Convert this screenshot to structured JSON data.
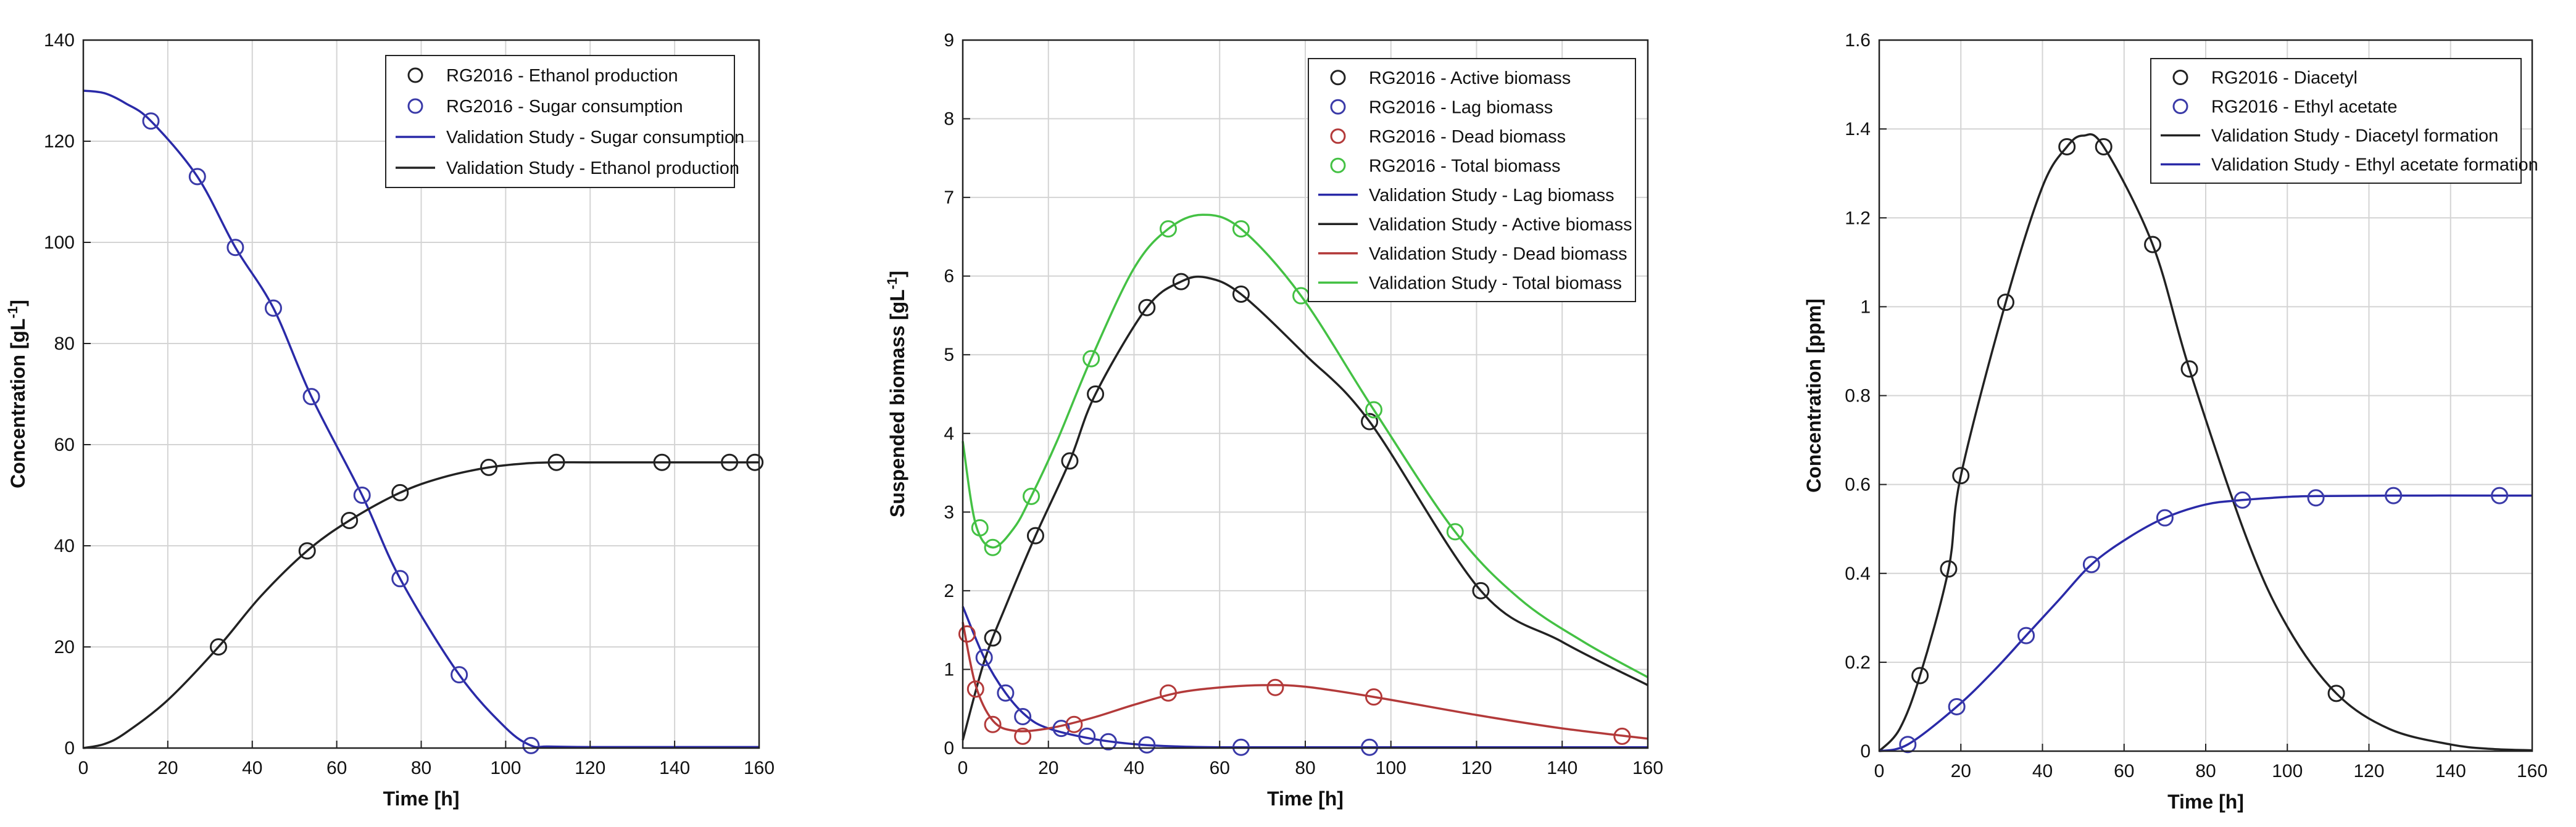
{
  "chart_data": [
    {
      "type": "line",
      "title": "",
      "xlabel": "Time [h]",
      "ylabel": "Concentration [gL",
      "ylabel_sup": "-1",
      "ylabel_close": "]",
      "xlim": [
        0,
        160
      ],
      "ylim": [
        0,
        140
      ],
      "xticks": [
        0,
        20,
        40,
        60,
        80,
        100,
        120,
        140,
        160
      ],
      "yticks": [
        0,
        20,
        40,
        60,
        80,
        100,
        120,
        140
      ],
      "grid": true,
      "legend_position": "top-right",
      "series": [
        {
          "name": "RG2016 - Ethanol production",
          "kind": "markers",
          "color": "#222222",
          "x": [
            32,
            53,
            63,
            75,
            96,
            112,
            137,
            153,
            159
          ],
          "y": [
            20,
            39,
            45,
            50.5,
            55.5,
            56.5,
            56.5,
            56.5,
            56.5
          ]
        },
        {
          "name": "RG2016 - Sugar consumption",
          "kind": "markers",
          "color": "#3a3aa8",
          "x": [
            16,
            27,
            36,
            45,
            54,
            66,
            75,
            89,
            106
          ],
          "y": [
            124,
            113,
            99,
            87,
            69.5,
            50,
            33.5,
            14.5,
            0.5
          ]
        },
        {
          "name": "Validation Study - Sugar consumption",
          "kind": "line",
          "color": "#2a2aa8",
          "x": [
            0,
            5,
            10,
            16,
            27,
            36,
            45,
            54,
            66,
            75,
            89,
            100,
            106,
            110,
            120,
            140,
            160
          ],
          "y": [
            130,
            129.5,
            127.5,
            124,
            113,
            99,
            87,
            69.5,
            50,
            33.5,
            14.5,
            4,
            0.5,
            0.3,
            0.2,
            0.2,
            0.2
          ]
        },
        {
          "name": "Validation Study - Ethanol production",
          "kind": "line",
          "color": "#222222",
          "x": [
            0,
            5,
            10,
            20,
            32,
            42,
            53,
            63,
            75,
            85,
            96,
            105,
            112,
            120,
            137,
            160
          ],
          "y": [
            0,
            0.8,
            3,
            9.5,
            20,
            30,
            39,
            45,
            50.5,
            53.5,
            55.5,
            56.3,
            56.5,
            56.5,
            56.5,
            56.5
          ]
        }
      ]
    },
    {
      "type": "line",
      "title": "",
      "xlabel": "Time [h]",
      "ylabel": "Suspended biomass [gL",
      "ylabel_sup": "-1",
      "ylabel_close": "]",
      "xlim": [
        0,
        160
      ],
      "ylim": [
        0,
        9
      ],
      "xticks": [
        0,
        20,
        40,
        60,
        80,
        100,
        120,
        140,
        160
      ],
      "yticks": [
        0,
        1,
        2,
        3,
        4,
        5,
        6,
        7,
        8,
        9
      ],
      "grid": true,
      "legend_position": "top-right",
      "series": [
        {
          "name": "RG2016 - Active biomass",
          "kind": "markers",
          "color": "#222222",
          "x": [
            7,
            17,
            25,
            31,
            43,
            51,
            65,
            95,
            121
          ],
          "y": [
            1.4,
            2.7,
            3.65,
            4.5,
            5.6,
            5.93,
            5.77,
            4.15,
            2.0
          ]
        },
        {
          "name": "RG2016 - Lag biomass",
          "kind": "markers",
          "color": "#3a3aa8",
          "x": [
            5,
            10,
            14,
            23,
            29,
            34,
            43,
            65,
            95
          ],
          "y": [
            1.15,
            0.7,
            0.4,
            0.25,
            0.15,
            0.08,
            0.04,
            0.01,
            0.01
          ]
        },
        {
          "name": "RG2016 - Dead biomass",
          "kind": "markers",
          "color": "#b33a3a",
          "x": [
            1,
            3,
            7,
            14,
            26,
            48,
            73,
            96,
            154
          ],
          "y": [
            1.45,
            0.75,
            0.3,
            0.15,
            0.3,
            0.7,
            0.77,
            0.65,
            0.15
          ]
        },
        {
          "name": "RG2016 - Total biomass",
          "kind": "markers",
          "color": "#44c144",
          "x": [
            4,
            7,
            16,
            30,
            48,
            65,
            79,
            96,
            115
          ],
          "y": [
            2.8,
            2.55,
            3.2,
            4.95,
            6.6,
            6.6,
            5.75,
            4.3,
            2.75
          ]
        },
        {
          "name": "Validation Study - Lag biomass",
          "kind": "line",
          "color": "#2a2aa8",
          "x": [
            0,
            5,
            10,
            15,
            20,
            30,
            40,
            50,
            60,
            80,
            100,
            160
          ],
          "y": [
            1.8,
            1.15,
            0.7,
            0.4,
            0.25,
            0.12,
            0.05,
            0.02,
            0.01,
            0.01,
            0.01,
            0.01
          ]
        },
        {
          "name": "Validation Study - Active biomass",
          "kind": "line",
          "color": "#222222",
          "x": [
            0,
            5,
            10,
            17,
            25,
            31,
            43,
            51,
            57,
            65,
            80,
            95,
            121,
            140,
            160
          ],
          "y": [
            0.1,
            1.1,
            1.8,
            2.7,
            3.65,
            4.5,
            5.6,
            5.93,
            5.98,
            5.77,
            5.0,
            4.15,
            2.0,
            1.35,
            0.8
          ]
        },
        {
          "name": "Validation Study - Dead biomass",
          "kind": "line",
          "color": "#b33a3a",
          "x": [
            0,
            3,
            7,
            12,
            20,
            30,
            40,
            50,
            60,
            70,
            80,
            96,
            120,
            140,
            160
          ],
          "y": [
            1.6,
            0.8,
            0.35,
            0.22,
            0.25,
            0.38,
            0.55,
            0.7,
            0.77,
            0.8,
            0.78,
            0.65,
            0.42,
            0.25,
            0.12
          ]
        },
        {
          "name": "Validation Study - Total biomass",
          "kind": "line",
          "color": "#44c144",
          "x": [
            0,
            3,
            7,
            12,
            16,
            22,
            30,
            40,
            48,
            56,
            65,
            79,
            96,
            115,
            130,
            145,
            160
          ],
          "y": [
            3.9,
            2.85,
            2.55,
            2.8,
            3.2,
            3.9,
            4.95,
            6.1,
            6.6,
            6.78,
            6.6,
            5.75,
            4.3,
            2.75,
            1.9,
            1.35,
            0.9
          ]
        }
      ]
    },
    {
      "type": "line",
      "title": "",
      "xlabel": "Time [h]",
      "ylabel": "Concentration [ppm]",
      "ylabel_sup": "",
      "ylabel_close": "",
      "xlim": [
        0,
        160
      ],
      "ylim": [
        0,
        1.6
      ],
      "xticks": [
        0,
        20,
        40,
        60,
        80,
        100,
        120,
        140,
        160
      ],
      "yticks": [
        0,
        0.2,
        0.4,
        0.6,
        0.8,
        1,
        1.2,
        1.4,
        1.6
      ],
      "grid": true,
      "legend_position": "top-right",
      "series": [
        {
          "name": "RG2016 - Diacetyl",
          "kind": "markers",
          "color": "#222222",
          "x": [
            10,
            17,
            20,
            31,
            46,
            55,
            67,
            76,
            112
          ],
          "y": [
            0.17,
            0.41,
            0.62,
            1.01,
            1.36,
            1.36,
            1.14,
            0.86,
            0.13
          ]
        },
        {
          "name": "RG2016 - Ethyl acetate",
          "kind": "markers",
          "color": "#3a3aa8",
          "x": [
            7,
            19,
            36,
            52,
            70,
            89,
            107,
            126,
            152
          ],
          "y": [
            0.015,
            0.1,
            0.26,
            0.42,
            0.525,
            0.565,
            0.57,
            0.575,
            0.575
          ]
        },
        {
          "name": "Validation Study - Diacetyl formation",
          "kind": "line",
          "color": "#222222",
          "x": [
            0,
            5,
            10,
            17,
            20,
            31,
            40,
            46,
            50,
            55,
            67,
            76,
            90,
            100,
            112,
            125,
            140,
            150,
            160
          ],
          "y": [
            0,
            0.05,
            0.17,
            0.41,
            0.62,
            1.01,
            1.27,
            1.36,
            1.385,
            1.36,
            1.14,
            0.86,
            0.48,
            0.28,
            0.13,
            0.05,
            0.015,
            0.005,
            0.002
          ]
        },
        {
          "name": "Validation Study - Ethyl acetate formation",
          "kind": "line",
          "color": "#2a2aa8",
          "x": [
            0,
            7,
            19,
            28,
            36,
            44,
            52,
            61,
            70,
            80,
            89,
            100,
            107,
            126,
            152,
            160
          ],
          "y": [
            0,
            0.015,
            0.1,
            0.18,
            0.26,
            0.34,
            0.42,
            0.48,
            0.525,
            0.555,
            0.565,
            0.572,
            0.574,
            0.575,
            0.575,
            0.575
          ]
        }
      ]
    }
  ]
}
